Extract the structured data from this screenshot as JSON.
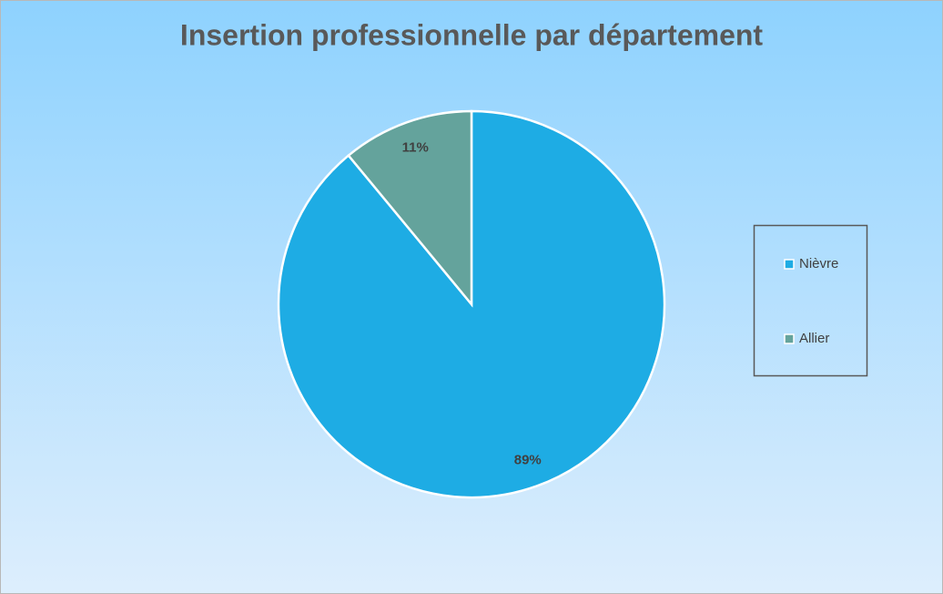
{
  "chart_data": {
    "type": "pie",
    "title": "Insertion professionnelle par département",
    "categories": [
      "Nièvre",
      "Allier"
    ],
    "values": [
      89,
      11
    ],
    "value_labels": [
      "89%",
      "11%"
    ],
    "colors": [
      "#1eace4",
      "#64a39c"
    ],
    "legend": "right"
  }
}
